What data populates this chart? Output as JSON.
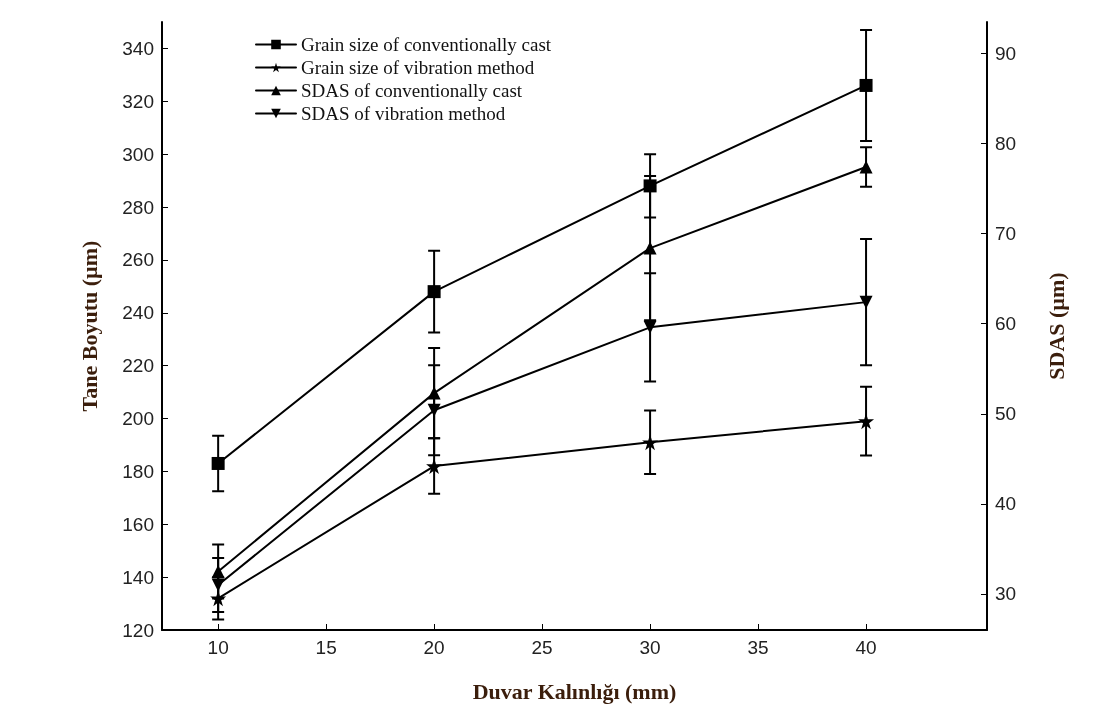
{
  "chart_data": {
    "type": "line",
    "xlabel": "Duvar Kalınlığı (mm)",
    "ylabel": "Tane Boyutu (µm)",
    "y2label": "SDAS (µm)",
    "x": [
      10,
      20,
      30,
      40
    ],
    "series": [
      {
        "name": "Grain size of conventionally cast",
        "color": "#000000",
        "marker": "square",
        "values": [
          183,
          248,
          288,
          326
        ],
        "errors": [
          10.5,
          15.5,
          12,
          21
        ]
      },
      {
        "name": "Grain size of vibration method",
        "color": "#000000",
        "marker": "star",
        "values": [
          132,
          182,
          191,
          199
        ],
        "errors": [
          8,
          10.5,
          12,
          13
        ]
      },
      {
        "name": "SDAS of conventionally cast",
        "color": "#000000",
        "marker": "triangle",
        "axis": "y2",
        "values": [
          32.5,
          52.3,
          68.4,
          77.4
        ],
        "errors": [
          3,
          5,
          8,
          2.2
        ]
      },
      {
        "name": "SDAS of vibration method",
        "color": "#000000",
        "marker": "triangle-down",
        "axis": "y2",
        "values": [
          31,
          50.4,
          59.6,
          62.4
        ],
        "errors": [
          3,
          5,
          6,
          7
        ]
      }
    ],
    "xlim": [
      7.4,
      45.6
    ],
    "xticks": [
      10,
      15,
      20,
      25,
      30,
      35,
      40
    ],
    "ylim": [
      120,
      350
    ],
    "yticks": [
      120,
      140,
      160,
      180,
      200,
      220,
      240,
      260,
      280,
      300,
      320,
      340
    ],
    "y2lim": [
      26,
      93.5
    ],
    "y2ticks": [
      30,
      40,
      50,
      60,
      70,
      80,
      90
    ],
    "legend": "top left",
    "line_style": "solid"
  }
}
